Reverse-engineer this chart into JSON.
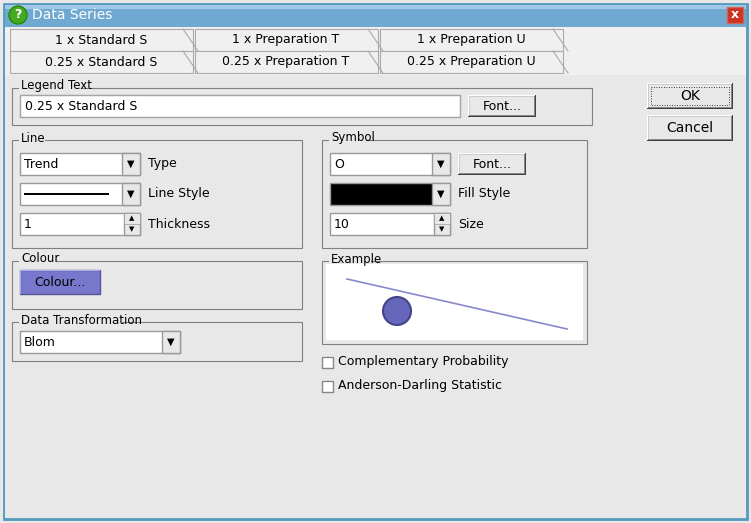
{
  "title": "Data Series",
  "titlebar_color": "#6fa8d0",
  "body_bg": "#e8e8e8",
  "white": "#ffffff",
  "black": "#000000",
  "border_dark": "#808080",
  "border_light": "#ffffff",
  "tabs_row1": [
    "1 x Standard S",
    "1 x Preparation T",
    "1 x Preparation U"
  ],
  "tabs_row2": [
    "0.25 x Standard S",
    "0.25 x Preparation T",
    "0.25 x Preparation U"
  ],
  "legend_text": "0.25 x Standard S",
  "line_type": "Trend",
  "line_thickness": "1",
  "symbol": "O",
  "size_val": "10",
  "colour_btn_color": "#7777cc",
  "data_transform": "Blom",
  "checkboxes": [
    "Complementary Probability",
    "Anderson-Darling Statistic"
  ],
  "example_line_color": "#8888cc",
  "example_circle_color": "#6666bb",
  "example_circle_edge": "#444488",
  "ok_btn": "OK",
  "cancel_btn": "Cancel",
  "close_btn_color": "#dd3333",
  "font_btn": "Font...",
  "ok_underline": "O",
  "cancel_underline": "C"
}
